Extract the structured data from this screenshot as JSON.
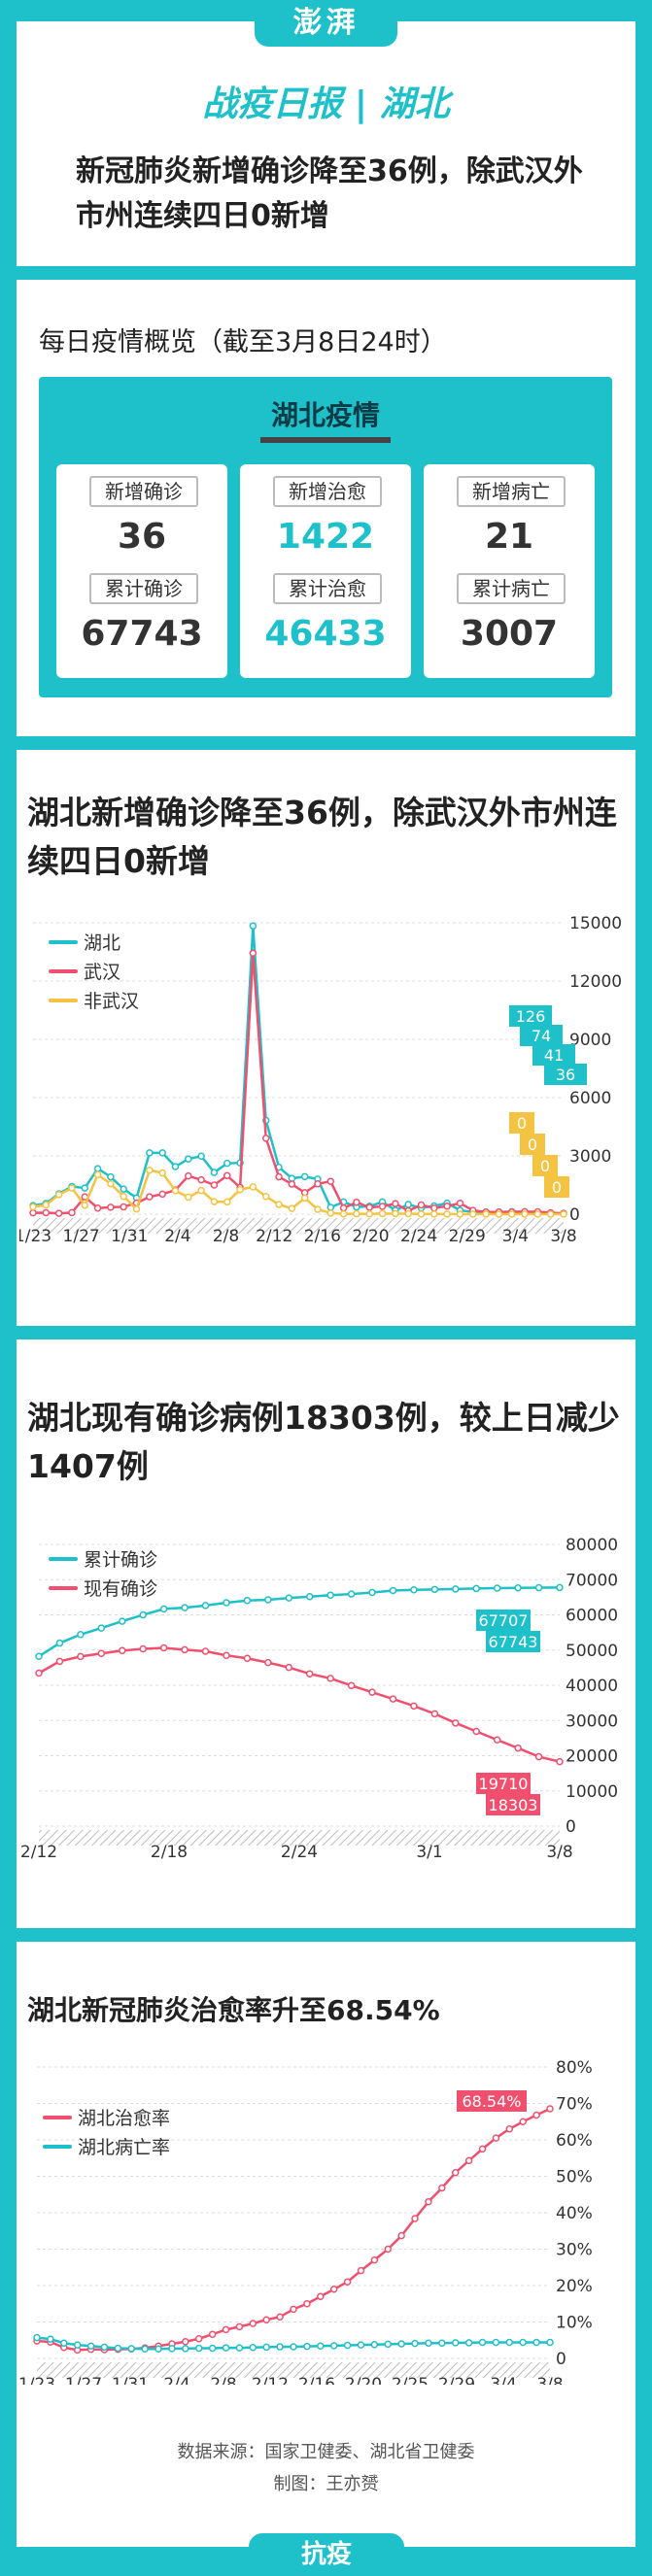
{
  "header": {
    "logo": "澎湃",
    "title": "战疫日报 | 湖北",
    "headline": "新冠肺炎新增确诊降至36例，除武汉外市州连续四日0新增"
  },
  "overview": {
    "subtitle": "每日疫情概览（截至3月8日24时）",
    "panel_title": "湖北疫情",
    "cards": [
      {
        "label1": "新增确诊",
        "value1": "36",
        "label2": "累计确诊",
        "value2": "67743"
      },
      {
        "label1": "新增治愈",
        "value1": "1422",
        "label2": "累计治愈",
        "value2": "46433"
      },
      {
        "label1": "新增病亡",
        "value1": "21",
        "label2": "累计病亡",
        "value2": "3007"
      }
    ]
  },
  "colors": {
    "teal": "#1ec0c9",
    "red": "#f0506e",
    "yellow": "#f5c342",
    "dark": "#0b3b46"
  },
  "chart_data": [
    {
      "type": "line",
      "title": "湖北新增确诊降至36例，除武汉外市州连续四日0新增",
      "x_ticks": [
        "1/23",
        "1/27",
        "1/31",
        "2/4",
        "2/8",
        "2/12",
        "2/16",
        "2/20",
        "2/24",
        "2/29",
        "3/4",
        "3/8"
      ],
      "ylim": [
        0,
        15000
      ],
      "y_ticks": [
        "15000",
        "12000",
        "9000",
        "6000",
        "3000",
        "0"
      ],
      "series": [
        {
          "name": "湖北",
          "color": "#1ec0c9",
          "values": [
            444,
            549,
            1052,
            1423,
            1347,
            2345,
            1921,
            1291,
            840,
            3156,
            3156,
            2447,
            2841,
            2987,
            2147,
            2618,
            2639,
            14840,
            4823,
            2420,
            1843,
            1933,
            1807,
            349,
            631,
            366,
            411,
            629,
            202,
            499,
            318,
            423,
            570,
            196,
            114,
            115,
            111,
            132,
            126,
            74,
            41,
            36
          ]
        },
        {
          "name": "武汉",
          "color": "#f0506e",
          "values": [
            70,
            77,
            46,
            80,
            892,
            315,
            356,
            378,
            576,
            894,
            1033,
            1242,
            1967,
            1766,
            1501,
            1985,
            1379,
            13436,
            3910,
            1923,
            1548,
            1104,
            1560,
            1690,
            319,
            615,
            348,
            400,
            541,
            175,
            474,
            313,
            411,
            565,
            193,
            111,
            114,
            110,
            131,
            126,
            74,
            41
          ]
        },
        {
          "name": "非武汉",
          "color": "#f5c342",
          "values": [
            374,
            472,
            1006,
            1343,
            455,
            2030,
            1565,
            913,
            264,
            2262,
            2123,
            1205,
            874,
            1221,
            646,
            633,
            1260,
            1404,
            913,
            497,
            295,
            829,
            247,
            59,
            12,
            18,
            11,
            29,
            27,
            24,
            5,
            10,
            5,
            3,
            1,
            4,
            0,
            2,
            1,
            0,
            0,
            0
          ]
        }
      ],
      "labels_teal": [
        "126",
        "74",
        "41",
        "36"
      ],
      "labels_yellow": [
        "0",
        "0",
        "0",
        "0"
      ]
    },
    {
      "type": "line",
      "title": "湖北现有确诊病例18303例，较上日减少1407例",
      "x_ticks": [
        "2/12",
        "2/18",
        "2/24",
        "3/1",
        "3/8"
      ],
      "ylim": [
        0,
        80000
      ],
      "y_ticks": [
        "80000",
        "70000",
        "60000",
        "50000",
        "40000",
        "30000",
        "20000",
        "10000",
        "0"
      ],
      "series": [
        {
          "name": "累计确诊",
          "color": "#1ec0c9",
          "values": [
            48206,
            51986,
            54406,
            56249,
            58182,
            59989,
            61682,
            62031,
            62662,
            63454,
            64084,
            64287,
            64786,
            65187,
            65596,
            65914,
            66337,
            66907,
            67103,
            67217,
            67332,
            67466,
            67592,
            67666,
            67707,
            67743
          ]
        },
        {
          "name": "现有确诊",
          "color": "#f0506e",
          "values": [
            43455,
            46806,
            48175,
            49030,
            49847,
            50338,
            50633,
            50091,
            49665,
            48485,
            47647,
            46439,
            45054,
            43258,
            41957,
            39919,
            38020,
            36117,
            34114,
            31896,
            29289,
            26889,
            24486,
            22160,
            19710,
            18303
          ]
        }
      ],
      "labels_teal": [
        "67707",
        "67743"
      ],
      "labels_red": [
        "19710",
        "18303"
      ]
    },
    {
      "type": "line",
      "title": "湖北新冠肺炎治愈率升至68.54%",
      "x_ticks": [
        "1/23",
        "1/27",
        "1/31",
        "2/4",
        "2/8",
        "2/12",
        "2/16",
        "2/20",
        "2/25",
        "2/29",
        "3/4",
        "3/8"
      ],
      "ylim": [
        0,
        80
      ],
      "y_ticks": [
        "80%",
        "70%",
        "60%",
        "50%",
        "40%",
        "30%",
        "20%",
        "10%",
        "0"
      ],
      "series": [
        {
          "name": "湖北治愈率",
          "color": "#f0506e",
          "values": [
            4.8,
            4.5,
            3.0,
            2.3,
            2.5,
            2.4,
            2.5,
            2.6,
            2.9,
            3.4,
            4.0,
            4.6,
            5.4,
            6.6,
            7.9,
            8.7,
            9.6,
            10.6,
            11.4,
            13.5,
            15.0,
            17.0,
            19.0,
            21.0,
            24.1,
            27.0,
            30.0,
            33.7,
            38.4,
            43.0,
            46.8,
            51.0,
            54.3,
            57.5,
            60.5,
            63.0,
            65.0,
            66.8,
            68.54
          ]
        },
        {
          "name": "湖北病亡率",
          "color": "#1ec0c9",
          "values": [
            5.7,
            5.3,
            4.2,
            3.7,
            3.4,
            3.1,
            2.8,
            2.7,
            2.6,
            2.6,
            2.7,
            2.7,
            2.8,
            2.8,
            2.9,
            2.9,
            3.0,
            3.1,
            3.2,
            3.2,
            3.3,
            3.4,
            3.5,
            3.6,
            3.7,
            3.8,
            3.9,
            4.0,
            4.1,
            4.2,
            4.2,
            4.3,
            4.3,
            4.4,
            4.4,
            4.4,
            4.4,
            4.4,
            4.4
          ]
        }
      ],
      "labels_red": [
        "68.54%"
      ]
    }
  ],
  "footer": {
    "source": "数据来源：国家卫健委、湖北省卫健委",
    "maker": "制图：王亦赟",
    "tab": "抗疫"
  }
}
